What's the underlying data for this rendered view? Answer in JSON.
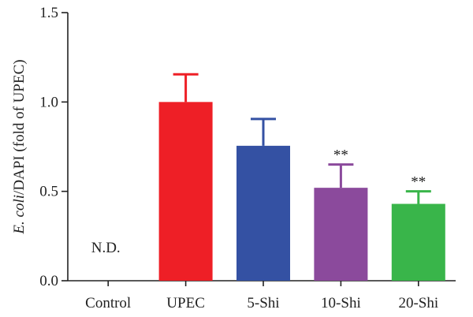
{
  "chart_data": {
    "type": "bar",
    "ylabel_italic": "E. coli",
    "ylabel_rest": "/DAPI (fold of UPEC)",
    "ylim": [
      0,
      1.5
    ],
    "yticks": [
      "0.0",
      "0.5",
      "1.0",
      "1.5"
    ],
    "ytick_values": [
      0,
      0.5,
      1.0,
      1.5
    ],
    "categories": [
      "Control",
      "UPEC",
      "5-Shi",
      "10-Shi",
      "20-Shi"
    ],
    "values": [
      null,
      1.0,
      0.755,
      0.52,
      0.43
    ],
    "errors": [
      null,
      0.155,
      0.15,
      0.13,
      0.07
    ],
    "colors": [
      "#ffffff",
      "#ee1f26",
      "#3451a3",
      "#8b4a9c",
      "#39b54a"
    ],
    "annotations": [
      "N.D.",
      "",
      "",
      "**",
      "**"
    ]
  }
}
